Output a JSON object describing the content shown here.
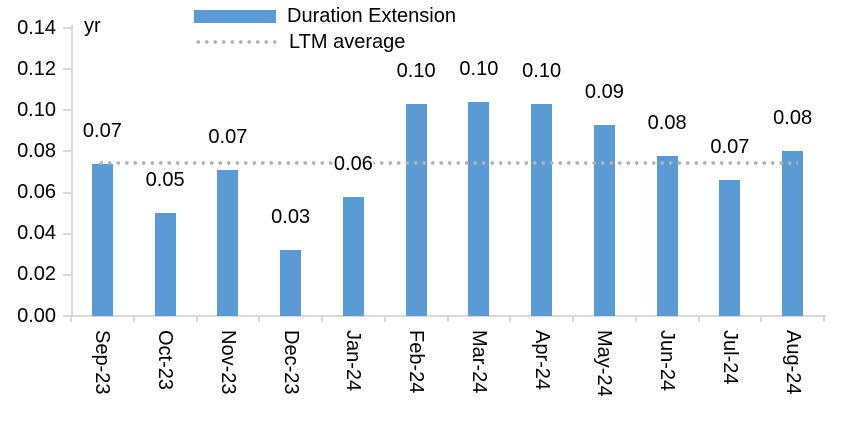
{
  "chart_data": {
    "type": "bar",
    "unit_label": "yr",
    "categories": [
      "Sep-23",
      "Oct-23",
      "Nov-23",
      "Dec-23",
      "Jan-24",
      "Feb-24",
      "Mar-24",
      "Apr-24",
      "May-24",
      "Jun-24",
      "Jul-24",
      "Aug-24"
    ],
    "series": [
      {
        "name": "Duration Extension",
        "color": "#5B9BD5",
        "values": [
          0.074,
          0.05,
          0.071,
          0.032,
          0.058,
          0.103,
          0.104,
          0.103,
          0.093,
          0.078,
          0.066,
          0.08
        ],
        "data_labels": [
          "0.07",
          "0.05",
          "0.07",
          "0.03",
          "0.06",
          "0.10",
          "0.10",
          "0.10",
          "0.09",
          "0.08",
          "0.07",
          "0.08"
        ]
      }
    ],
    "reference_line": {
      "label": "LTM average",
      "value": 0.0745,
      "style": "dotted",
      "color": "#B3B3B3"
    },
    "y_axis": {
      "ticks": [
        "0.00",
        "0.02",
        "0.04",
        "0.06",
        "0.08",
        "0.10",
        "0.12",
        "0.14"
      ],
      "min": 0,
      "max": 0.14
    },
    "x_axis": {
      "label_rotation_deg": 90
    },
    "legend": {
      "position": "top",
      "items": [
        {
          "label": "Duration Extension",
          "swatch": "bar",
          "color": "#5B9BD5"
        },
        {
          "label": "LTM average",
          "swatch": "dotted-line",
          "color": "#B3B3B3"
        }
      ]
    },
    "gridlines": false,
    "axis_color": "#D9D9D9",
    "text_color": "#000000"
  }
}
